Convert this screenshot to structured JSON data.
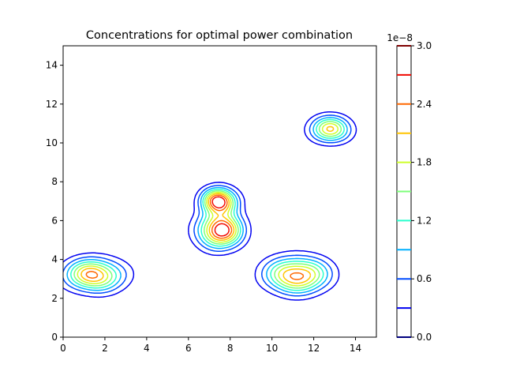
{
  "chart_data": {
    "type": "contour",
    "title": "Concentrations for optimal power combination",
    "xlabel": "",
    "ylabel": "",
    "xlim": [
      0,
      15
    ],
    "ylim": [
      0,
      15
    ],
    "x_ticks": [
      "0",
      "2",
      "4",
      "6",
      "8",
      "10",
      "12",
      "14"
    ],
    "y_ticks": [
      "0",
      "2",
      "4",
      "6",
      "8",
      "10",
      "12",
      "14"
    ],
    "colorbar": {
      "offset_label": "1e−8",
      "range": [
        0.0,
        3.0
      ],
      "tick_labels": [
        "0.0",
        "0.6",
        "1.2",
        "1.8",
        "2.4",
        "3.0"
      ],
      "tick_values": [
        0.0,
        0.6,
        1.2,
        1.8,
        2.4,
        3.0
      ],
      "levels": [
        0.0,
        0.3,
        0.6,
        0.9,
        1.2,
        1.5,
        1.8,
        2.1,
        2.4,
        2.7,
        3.0
      ],
      "level_colors": [
        "#00007f",
        "#0000f1",
        "#004cff",
        "#00b0ff",
        "#29ffce",
        "#7dff7a",
        "#ceff29",
        "#ffc400",
        "#ff6800",
        "#f10800",
        "#7f0000"
      ]
    },
    "sources": [
      {
        "x": 1.5,
        "y": 3.2,
        "peak": 2.5
      },
      {
        "x": 7.5,
        "y": 7.0,
        "peak": 3.0
      },
      {
        "x": 7.5,
        "y": 5.5,
        "peak": 3.0
      },
      {
        "x": 11.2,
        "y": 3.2,
        "peak": 2.7
      },
      {
        "x": 12.8,
        "y": 10.7,
        "peak": 2.0
      }
    ],
    "grid": false,
    "colormap": "jet"
  }
}
